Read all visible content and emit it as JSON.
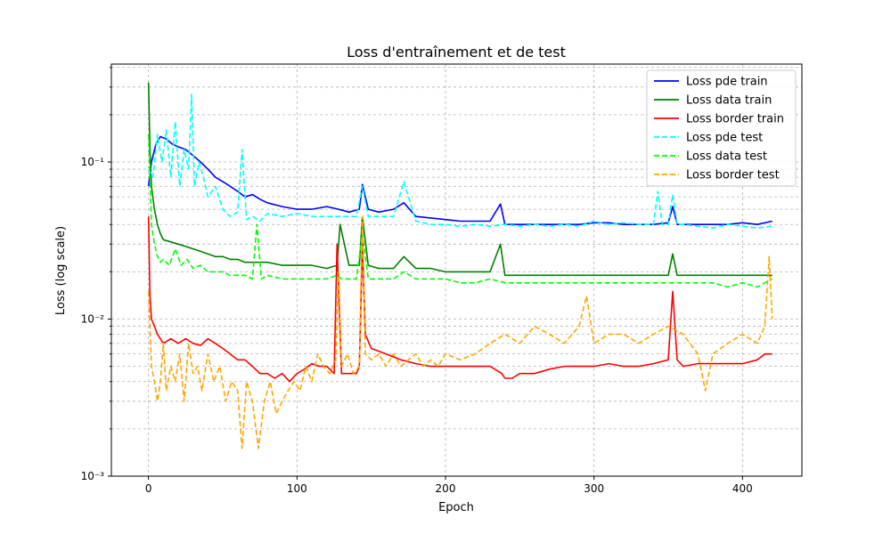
{
  "chart_data": {
    "type": "line",
    "title": "Loss d'entraînement et de test",
    "xlabel": "Epoch",
    "ylabel": "Loss (log scale)",
    "xlim": [
      -25,
      440
    ],
    "ylim": [
      0.001,
      0.42
    ],
    "yscale": "log",
    "xticks": [
      0,
      100,
      200,
      300,
      400
    ],
    "xtick_labels": [
      "0",
      "100",
      "200",
      "300",
      "400"
    ],
    "yticks": [
      0.001,
      0.01,
      0.1
    ],
    "ytick_labels": [
      "10⁻³",
      "10⁻²",
      "10⁻¹"
    ],
    "grid": true,
    "legend_position": "top-right",
    "series": [
      {
        "name": "Loss pde train",
        "color": "#0000ff",
        "style": "solid",
        "x": [
          0,
          2,
          5,
          8,
          12,
          16,
          20,
          25,
          30,
          35,
          40,
          45,
          50,
          55,
          60,
          65,
          70,
          75,
          80,
          90,
          100,
          110,
          120,
          128,
          135,
          142,
          144,
          148,
          155,
          165,
          172,
          180,
          190,
          200,
          210,
          220,
          230,
          237,
          240,
          250,
          260,
          270,
          280,
          290,
          300,
          310,
          320,
          330,
          340,
          350,
          353,
          356,
          360,
          370,
          380,
          390,
          400,
          410,
          420
        ],
        "y": [
          0.07,
          0.1,
          0.13,
          0.145,
          0.14,
          0.13,
          0.125,
          0.12,
          0.11,
          0.1,
          0.09,
          0.08,
          0.075,
          0.07,
          0.065,
          0.06,
          0.062,
          0.058,
          0.055,
          0.052,
          0.05,
          0.05,
          0.052,
          0.05,
          0.048,
          0.05,
          0.072,
          0.05,
          0.048,
          0.05,
          0.055,
          0.045,
          0.044,
          0.043,
          0.042,
          0.042,
          0.042,
          0.054,
          0.04,
          0.04,
          0.04,
          0.04,
          0.04,
          0.04,
          0.041,
          0.041,
          0.04,
          0.04,
          0.04,
          0.041,
          0.052,
          0.04,
          0.04,
          0.04,
          0.04,
          0.04,
          0.041,
          0.04,
          0.042
        ]
      },
      {
        "name": "Loss data train",
        "color": "#008000",
        "style": "solid",
        "x": [
          0,
          1,
          2,
          4,
          6,
          8,
          10,
          15,
          20,
          25,
          30,
          35,
          40,
          45,
          50,
          55,
          60,
          65,
          70,
          80,
          90,
          100,
          110,
          120,
          127,
          129,
          135,
          142,
          144,
          148,
          155,
          165,
          172,
          180,
          190,
          200,
          210,
          220,
          230,
          237,
          240,
          250,
          260,
          270,
          280,
          290,
          300,
          310,
          320,
          330,
          340,
          350,
          353,
          356,
          360,
          370,
          380,
          390,
          400,
          410,
          420
        ],
        "y": [
          0.32,
          0.12,
          0.07,
          0.05,
          0.04,
          0.035,
          0.032,
          0.031,
          0.03,
          0.029,
          0.028,
          0.027,
          0.026,
          0.025,
          0.025,
          0.024,
          0.024,
          0.023,
          0.023,
          0.023,
          0.022,
          0.022,
          0.022,
          0.021,
          0.022,
          0.04,
          0.022,
          0.022,
          0.045,
          0.022,
          0.021,
          0.021,
          0.025,
          0.021,
          0.021,
          0.02,
          0.02,
          0.02,
          0.02,
          0.03,
          0.019,
          0.019,
          0.019,
          0.019,
          0.019,
          0.019,
          0.019,
          0.019,
          0.019,
          0.019,
          0.019,
          0.019,
          0.026,
          0.019,
          0.019,
          0.019,
          0.019,
          0.019,
          0.019,
          0.019,
          0.019
        ]
      },
      {
        "name": "Loss border train",
        "color": "#ff0000",
        "style": "solid",
        "x": [
          0,
          1,
          2,
          4,
          6,
          10,
          15,
          20,
          25,
          30,
          35,
          40,
          45,
          50,
          55,
          60,
          65,
          70,
          75,
          80,
          85,
          90,
          95,
          100,
          105,
          110,
          115,
          120,
          125,
          127,
          130,
          135,
          140,
          142,
          144,
          146,
          150,
          160,
          170,
          180,
          190,
          200,
          210,
          220,
          230,
          238,
          240,
          245,
          250,
          260,
          270,
          280,
          290,
          300,
          310,
          320,
          330,
          340,
          350,
          353,
          356,
          360,
          370,
          380,
          390,
          400,
          410,
          415,
          420
        ],
        "y": [
          0.045,
          0.014,
          0.01,
          0.009,
          0.008,
          0.007,
          0.0075,
          0.007,
          0.0075,
          0.007,
          0.0068,
          0.0075,
          0.007,
          0.0065,
          0.006,
          0.0055,
          0.0055,
          0.005,
          0.0045,
          0.0045,
          0.0042,
          0.0045,
          0.004,
          0.0045,
          0.0048,
          0.0052,
          0.005,
          0.005,
          0.0045,
          0.03,
          0.0045,
          0.0045,
          0.0045,
          0.005,
          0.03,
          0.008,
          0.0065,
          0.006,
          0.0055,
          0.0052,
          0.005,
          0.005,
          0.005,
          0.005,
          0.005,
          0.0045,
          0.0042,
          0.0042,
          0.0045,
          0.0045,
          0.0048,
          0.005,
          0.005,
          0.005,
          0.0052,
          0.005,
          0.005,
          0.0052,
          0.0055,
          0.015,
          0.0055,
          0.005,
          0.0052,
          0.0052,
          0.0052,
          0.0052,
          0.0055,
          0.006,
          0.006
        ]
      },
      {
        "name": "Loss pde test",
        "color": "#00ffff",
        "style": "dashed",
        "x": [
          0,
          3,
          6,
          9,
          12,
          15,
          18,
          21,
          24,
          27,
          29,
          31,
          34,
          37,
          40,
          45,
          50,
          55,
          60,
          63,
          66,
          70,
          75,
          80,
          90,
          100,
          110,
          120,
          130,
          140,
          144,
          148,
          155,
          165,
          172,
          180,
          190,
          200,
          210,
          220,
          230,
          240,
          250,
          260,
          270,
          280,
          290,
          300,
          310,
          320,
          330,
          340,
          343,
          346,
          350,
          353,
          356,
          360,
          370,
          380,
          390,
          400,
          410,
          420
        ],
        "y": [
          0.09,
          0.08,
          0.15,
          0.1,
          0.16,
          0.08,
          0.18,
          0.07,
          0.12,
          0.09,
          0.27,
          0.07,
          0.1,
          0.08,
          0.06,
          0.07,
          0.05,
          0.045,
          0.048,
          0.12,
          0.043,
          0.045,
          0.042,
          0.047,
          0.045,
          0.047,
          0.045,
          0.045,
          0.045,
          0.045,
          0.07,
          0.045,
          0.045,
          0.045,
          0.075,
          0.042,
          0.04,
          0.04,
          0.039,
          0.04,
          0.039,
          0.04,
          0.039,
          0.04,
          0.039,
          0.04,
          0.039,
          0.042,
          0.04,
          0.041,
          0.04,
          0.04,
          0.065,
          0.04,
          0.04,
          0.062,
          0.04,
          0.04,
          0.039,
          0.038,
          0.04,
          0.039,
          0.038,
          0.039
        ]
      },
      {
        "name": "Loss data test",
        "color": "#00ff00",
        "style": "dashed",
        "x": [
          0,
          2,
          4,
          6,
          8,
          10,
          14,
          18,
          22,
          26,
          30,
          35,
          40,
          45,
          50,
          55,
          60,
          65,
          70,
          73,
          76,
          80,
          90,
          100,
          110,
          120,
          127,
          130,
          140,
          144,
          148,
          155,
          165,
          172,
          180,
          190,
          200,
          210,
          220,
          230,
          240,
          250,
          260,
          270,
          280,
          290,
          300,
          310,
          320,
          330,
          340,
          350,
          360,
          370,
          380,
          390,
          400,
          410,
          420
        ],
        "y": [
          0.15,
          0.04,
          0.03,
          0.025,
          0.023,
          0.024,
          0.022,
          0.028,
          0.022,
          0.024,
          0.021,
          0.022,
          0.02,
          0.02,
          0.02,
          0.019,
          0.019,
          0.019,
          0.018,
          0.04,
          0.018,
          0.019,
          0.018,
          0.018,
          0.018,
          0.018,
          0.019,
          0.018,
          0.018,
          0.035,
          0.018,
          0.018,
          0.018,
          0.02,
          0.018,
          0.018,
          0.018,
          0.017,
          0.017,
          0.018,
          0.017,
          0.017,
          0.017,
          0.017,
          0.017,
          0.017,
          0.017,
          0.017,
          0.017,
          0.017,
          0.017,
          0.017,
          0.017,
          0.017,
          0.017,
          0.016,
          0.017,
          0.016,
          0.018
        ]
      },
      {
        "name": "Loss border test",
        "color": "#ffa500",
        "style": "dashed",
        "x": [
          0,
          2,
          4,
          6,
          8,
          10,
          12,
          15,
          18,
          21,
          24,
          27,
          30,
          33,
          36,
          40,
          44,
          48,
          52,
          56,
          60,
          63,
          66,
          70,
          74,
          78,
          82,
          86,
          90,
          94,
          98,
          102,
          106,
          110,
          114,
          118,
          122,
          126,
          128,
          130,
          134,
          138,
          142,
          144,
          146,
          150,
          155,
          160,
          165,
          170,
          175,
          180,
          185,
          190,
          195,
          200,
          210,
          220,
          230,
          240,
          250,
          260,
          270,
          280,
          290,
          295,
          300,
          310,
          320,
          330,
          340,
          350,
          360,
          370,
          375,
          380,
          390,
          400,
          410,
          415,
          418,
          420
        ],
        "y": [
          0.015,
          0.005,
          0.004,
          0.003,
          0.004,
          0.007,
          0.0035,
          0.005,
          0.004,
          0.006,
          0.003,
          0.007,
          0.0045,
          0.005,
          0.0035,
          0.006,
          0.004,
          0.005,
          0.003,
          0.004,
          0.0035,
          0.0015,
          0.004,
          0.003,
          0.0015,
          0.003,
          0.004,
          0.0025,
          0.003,
          0.0035,
          0.004,
          0.0035,
          0.005,
          0.004,
          0.006,
          0.005,
          0.0045,
          0.0055,
          0.02,
          0.005,
          0.006,
          0.0045,
          0.005,
          0.045,
          0.006,
          0.0055,
          0.006,
          0.005,
          0.006,
          0.005,
          0.0055,
          0.006,
          0.005,
          0.0055,
          0.005,
          0.006,
          0.0055,
          0.006,
          0.007,
          0.008,
          0.007,
          0.009,
          0.008,
          0.007,
          0.009,
          0.014,
          0.007,
          0.008,
          0.008,
          0.007,
          0.008,
          0.009,
          0.008,
          0.006,
          0.0035,
          0.006,
          0.007,
          0.008,
          0.007,
          0.009,
          0.025,
          0.01
        ]
      }
    ]
  }
}
